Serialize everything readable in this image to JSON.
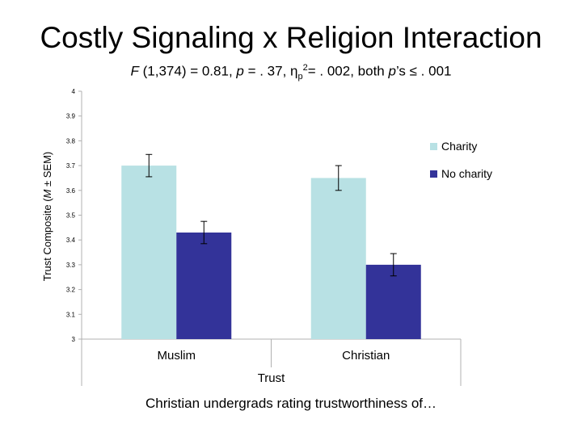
{
  "title": "Costly Signaling x Religion Interaction",
  "subtitle": {
    "f_letter": "F",
    "f_rest": " (1,374) = 0.81, ",
    "p1_letter": "p",
    "p1_rest": " = . 37, η",
    "eta_sub": "p",
    "eta_sup": "2",
    "eta_rest": "= . 002, both ",
    "p2_letter": "p",
    "p2_rest": "’s ≤ . 001"
  },
  "footer": "Christian undergrads rating trustworthiness of…",
  "chart_data": {
    "type": "bar",
    "categories": [
      "Muslim",
      "Christian"
    ],
    "series": [
      {
        "name": "Charity",
        "values": [
          3.7,
          3.65
        ],
        "errors": [
          0.045,
          0.05
        ],
        "color": "#b8e1e4"
      },
      {
        "name": "No charity",
        "values": [
          3.43,
          3.3
        ],
        "errors": [
          0.045,
          0.045
        ],
        "color": "#333399"
      }
    ],
    "xlabel": "Trust",
    "ylabel": "Trust Composite (M ± SEM)",
    "ylim": [
      3,
      4
    ],
    "yticks": [
      "3",
      "3.1",
      "3.2",
      "3.3",
      "3.4",
      "3.5",
      "3.6",
      "3.7",
      "3.8",
      "3.9",
      "4"
    ],
    "grid": false,
    "legend": "right"
  }
}
